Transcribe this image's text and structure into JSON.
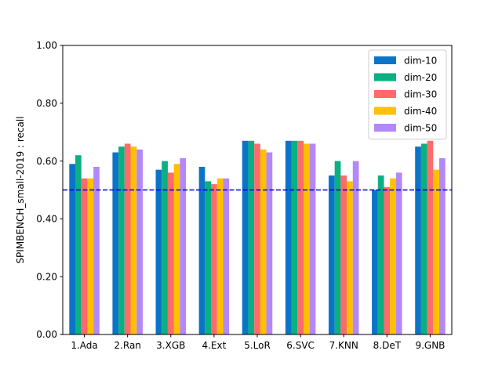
{
  "chart_data": {
    "type": "bar",
    "ylabel": "SPIMBENCH_small-2019 : recall",
    "xlabel": "",
    "ylim": [
      0.0,
      1.0
    ],
    "yticks": [
      "0.00",
      "0.20",
      "0.40",
      "0.60",
      "0.80",
      "1.00"
    ],
    "categories": [
      "1.Ada",
      "2.Ran",
      "3.XGB",
      "4.Ext",
      "5.LoR",
      "6.SVC",
      "7.KNN",
      "8.DeT",
      "9.GNB"
    ],
    "series": [
      {
        "name": "dim-10",
        "color": "#0a75c8",
        "values": [
          0.59,
          0.63,
          0.57,
          0.58,
          0.67,
          0.67,
          0.55,
          0.5,
          0.65
        ]
      },
      {
        "name": "dim-20",
        "color": "#0aaf82",
        "values": [
          0.62,
          0.65,
          0.6,
          0.53,
          0.67,
          0.67,
          0.6,
          0.55,
          0.66
        ]
      },
      {
        "name": "dim-30",
        "color": "#ff6b6b",
        "values": [
          0.54,
          0.66,
          0.56,
          0.52,
          0.66,
          0.67,
          0.55,
          0.51,
          0.67
        ]
      },
      {
        "name": "dim-40",
        "color": "#ffc000",
        "values": [
          0.54,
          0.65,
          0.59,
          0.54,
          0.64,
          0.66,
          0.53,
          0.54,
          0.57
        ]
      },
      {
        "name": "dim-50",
        "color": "#b388f8",
        "values": [
          0.58,
          0.64,
          0.61,
          0.54,
          0.63,
          0.66,
          0.6,
          0.56,
          0.61
        ]
      }
    ],
    "reference_line": {
      "value": 0.5,
      "color": "#0000cc",
      "style": "dashed"
    },
    "legend_position": "top-right",
    "grid": false
  }
}
